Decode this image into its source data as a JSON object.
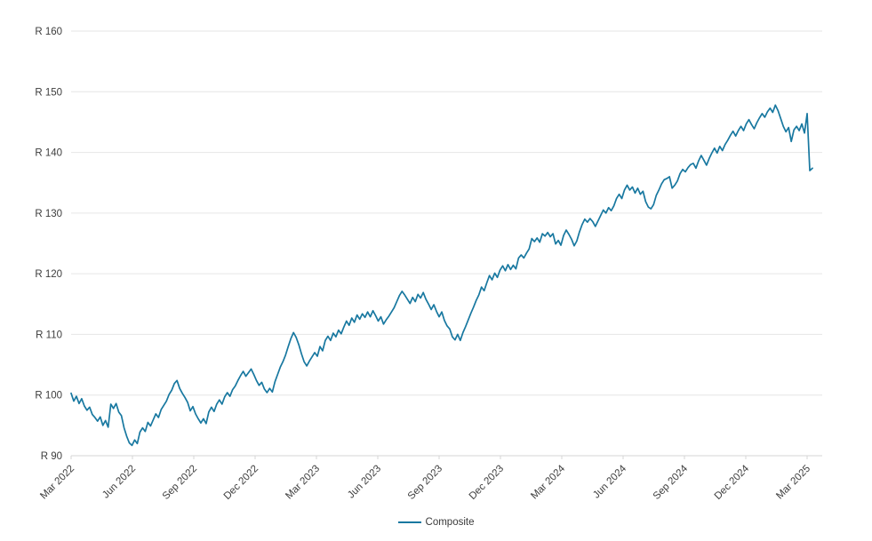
{
  "colors": {
    "line": "#1878a0",
    "gridline": "#e6e6e6",
    "axis_line": "#d6d6d6",
    "tick_mark": "#d6d6d6",
    "text": "#3d3d3d",
    "background": "#ffffff"
  },
  "legend": {
    "label": "Composite"
  },
  "chart_data": {
    "type": "line",
    "title": "",
    "xlabel": "",
    "ylabel": "",
    "ylim": [
      90,
      160
    ],
    "grid": "horizontal",
    "legend_position": "bottom-center",
    "y_ticks": [
      {
        "value": 160,
        "label": "R 160"
      },
      {
        "value": 150,
        "label": "R 150"
      },
      {
        "value": 140,
        "label": "R 140"
      },
      {
        "value": 130,
        "label": "R 130"
      },
      {
        "value": 120,
        "label": "R 120"
      },
      {
        "value": 110,
        "label": "R 110"
      },
      {
        "value": 100,
        "label": "R 100"
      },
      {
        "value": 90,
        "label": "R 90"
      }
    ],
    "x_tick_labels": [
      "Mar 2022",
      "Jun 2022",
      "Sep 2022",
      "Dec 2022",
      "Mar 2023",
      "Jun 2023",
      "Sep 2023",
      "Dec 2023",
      "Mar 2024",
      "Jun 2024",
      "Sep 2024",
      "Dec 2024",
      "Mar 2025"
    ],
    "series": [
      {
        "name": "Composite",
        "color": "#1878a0",
        "values": [
          100.3,
          99.0,
          99.8,
          98.6,
          99.4,
          98.2,
          97.5,
          98.0,
          96.8,
          96.3,
          95.7,
          96.4,
          95.0,
          95.8,
          94.7,
          98.5,
          97.8,
          98.6,
          97.2,
          96.6,
          94.6,
          93.2,
          92.1,
          91.7,
          92.6,
          92.0,
          93.9,
          94.6,
          94.0,
          95.5,
          94.9,
          95.9,
          96.9,
          96.3,
          97.6,
          98.3,
          99.0,
          100.1,
          100.8,
          101.9,
          102.4,
          101.1,
          100.3,
          99.6,
          98.8,
          97.4,
          98.1,
          96.9,
          96.1,
          95.4,
          96.1,
          95.3,
          97.2,
          98.0,
          97.3,
          98.5,
          99.2,
          98.5,
          99.7,
          100.4,
          99.8,
          100.9,
          101.5,
          102.4,
          103.2,
          103.9,
          103.1,
          103.7,
          104.3,
          103.4,
          102.4,
          101.6,
          102.1,
          101.0,
          100.4,
          101.1,
          100.5,
          102.2,
          103.4,
          104.6,
          105.5,
          106.6,
          108.0,
          109.3,
          110.3,
          109.5,
          108.3,
          106.8,
          105.5,
          104.8,
          105.6,
          106.3,
          107.0,
          106.4,
          108.0,
          107.3,
          109.0,
          109.7,
          109.0,
          110.2,
          109.6,
          110.7,
          110.1,
          111.2,
          112.2,
          111.5,
          112.7,
          112.0,
          113.2,
          112.5,
          113.4,
          112.8,
          113.7,
          112.9,
          113.9,
          113.1,
          112.2,
          112.9,
          111.7,
          112.4,
          113.0,
          113.7,
          114.4,
          115.4,
          116.4,
          117.1,
          116.5,
          115.8,
          115.1,
          116.1,
          115.4,
          116.6,
          116.0,
          116.9,
          115.8,
          115.0,
          114.1,
          114.9,
          113.8,
          112.9,
          113.7,
          112.3,
          111.4,
          110.9,
          109.6,
          109.1,
          110.0,
          109.0,
          110.3,
          111.3,
          112.4,
          113.5,
          114.5,
          115.6,
          116.5,
          117.8,
          117.2,
          118.5,
          119.7,
          119.0,
          120.1,
          119.4,
          120.6,
          121.3,
          120.5,
          121.5,
          120.7,
          121.4,
          120.8,
          122.6,
          123.1,
          122.6,
          123.4,
          124.1,
          125.8,
          125.3,
          125.9,
          125.2,
          126.6,
          126.2,
          126.8,
          126.1,
          126.6,
          124.9,
          125.5,
          124.7,
          126.3,
          127.2,
          126.5,
          125.7,
          124.6,
          125.4,
          126.9,
          128.1,
          129.0,
          128.5,
          129.1,
          128.6,
          127.8,
          128.7,
          129.6,
          130.5,
          130.0,
          130.9,
          130.4,
          131.2,
          132.4,
          133.1,
          132.4,
          133.8,
          134.6,
          133.8,
          134.3,
          133.3,
          134.1,
          133.1,
          133.6,
          131.9,
          131.0,
          130.7,
          131.4,
          132.9,
          133.8,
          134.8,
          135.5,
          135.7,
          136.0,
          134.1,
          134.6,
          135.3,
          136.5,
          137.2,
          136.8,
          137.5,
          138.0,
          138.2,
          137.4,
          138.6,
          139.5,
          138.7,
          137.9,
          139.0,
          139.9,
          140.7,
          139.9,
          141.0,
          140.3,
          141.3,
          142.0,
          142.8,
          143.5,
          142.7,
          143.6,
          144.3,
          143.6,
          144.7,
          145.4,
          144.6,
          143.9,
          144.9,
          145.7,
          146.4,
          145.8,
          146.7,
          147.3,
          146.6,
          147.8,
          146.9,
          145.6,
          144.3,
          143.4,
          144.1,
          141.8,
          143.7,
          144.3,
          143.6,
          144.7,
          143.2,
          146.4,
          137.0,
          137.4
        ]
      }
    ]
  }
}
